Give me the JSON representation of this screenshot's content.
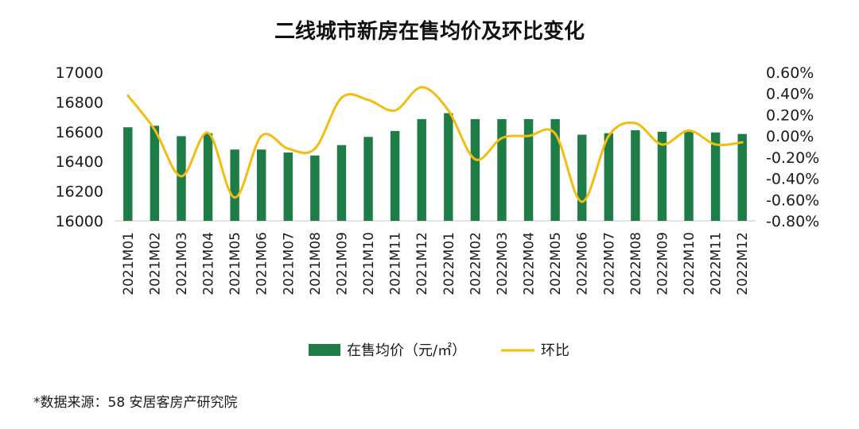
{
  "chart_data": {
    "type": "bar",
    "title": "二线城市新房在售均价及环比变化",
    "categories": [
      "2021M01",
      "2021M02",
      "2021M03",
      "2021M04",
      "2021M05",
      "2021M06",
      "2021M07",
      "2021M08",
      "2021M09",
      "2021M10",
      "2021M11",
      "2021M12",
      "2022M01",
      "2022M02",
      "2022M03",
      "2022M04",
      "2022M05",
      "2022M06",
      "2022M07",
      "2022M08",
      "2022M09",
      "2022M10",
      "2022M11",
      "2022M12"
    ],
    "y_left": {
      "range": [
        16000,
        17000
      ],
      "ticks": [
        "17000",
        "16800",
        "16600",
        "16400",
        "16200",
        "16000"
      ]
    },
    "y_right": {
      "range": [
        -0.8,
        0.6
      ],
      "unit": "%",
      "ticks": [
        "0.60%",
        "0.40%",
        "0.20%",
        "0.00%",
        "-0.20%",
        "-0.40%",
        "-0.60%",
        "-0.80%"
      ]
    },
    "series": [
      {
        "name": "在售均价（元/㎡）",
        "type": "bar",
        "axis": "left",
        "color": "#1e7d46",
        "values": [
          16630,
          16640,
          16570,
          16590,
          16480,
          16480,
          16460,
          16440,
          16510,
          16565,
          16605,
          16685,
          16725,
          16685,
          16685,
          16685,
          16685,
          16580,
          16590,
          16610,
          16600,
          16610,
          16595,
          16585
        ]
      },
      {
        "name": "环比",
        "type": "line",
        "axis": "right",
        "color": "#f5bc10",
        "values": [
          0.38,
          0.06,
          -0.38,
          0.03,
          -0.58,
          0.0,
          -0.12,
          -0.12,
          0.36,
          0.34,
          0.24,
          0.46,
          0.24,
          -0.22,
          -0.02,
          0.0,
          0.02,
          -0.62,
          0.0,
          0.12,
          -0.08,
          0.05,
          -0.08,
          -0.06
        ]
      }
    ],
    "grid": false,
    "legend_position": "bottom"
  },
  "footer": {
    "source": "*数据来源：58 安居客房产研究院"
  }
}
